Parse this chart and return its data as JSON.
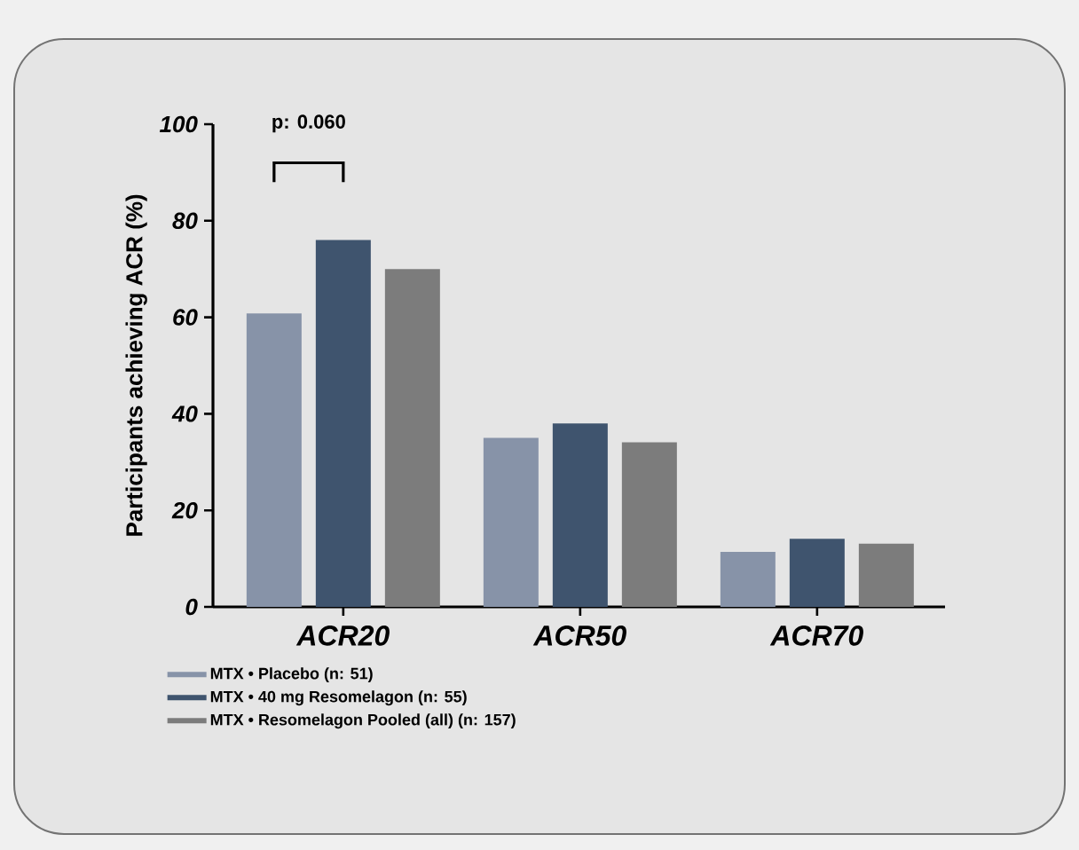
{
  "chart_data": {
    "type": "bar",
    "ylabel": "Participants achieving ACR (%)",
    "categories": [
      "ACR20",
      "ACR50",
      "ACR70"
    ],
    "series": [
      {
        "name": "MTX • Placebo (n: 51)",
        "color": "#8793a8",
        "values": [
          60.8,
          35,
          11.4
        ]
      },
      {
        "name": "MTX • 40 mg Resomelagon (n: 55)",
        "color": "#3f546e",
        "values": [
          76,
          38,
          14.1
        ]
      },
      {
        "name": "MTX • Resomelagon Pooled (all) (n: 157)",
        "color": "#7c7c7c",
        "values": [
          70,
          34.1,
          13.1
        ]
      }
    ],
    "ylim": [
      0,
      100
    ],
    "yticks": [
      0,
      20,
      40,
      60,
      80,
      100
    ],
    "grid": false,
    "legend": "bottom",
    "annotations": [
      "p: 0.060"
    ]
  }
}
